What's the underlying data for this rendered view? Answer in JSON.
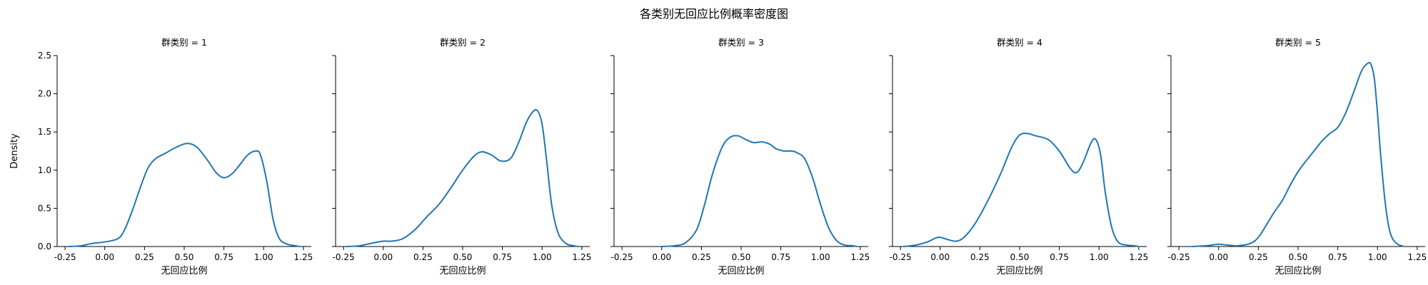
{
  "figure": {
    "title": "各类别无回应比例概率密度图"
  },
  "chart_data": {
    "type": "line",
    "subtype": "kde",
    "shared_y": true,
    "xlabel": "无回应比例",
    "ylabel": "Density",
    "xlim": [
      -0.3,
      1.3
    ],
    "ylim": [
      0,
      2.5
    ],
    "xticks": [
      "-0.25",
      "0.00",
      "0.25",
      "0.50",
      "0.75",
      "1.00",
      "1.25"
    ],
    "xtick_values": [
      -0.25,
      0,
      0.25,
      0.5,
      0.75,
      1.0,
      1.25
    ],
    "yticks": [
      "0.0",
      "0.5",
      "1.0",
      "1.5",
      "2.0",
      "2.5"
    ],
    "ytick_values": [
      0,
      0.5,
      1.0,
      1.5,
      2.0,
      2.5
    ],
    "line_color": "#1f77b4",
    "grid": false,
    "panels": [
      {
        "title": "群类别 = 1",
        "series": [
          {
            "x": [
              -0.23,
              -0.15,
              -0.08,
              0.0,
              0.08,
              0.12,
              0.17,
              0.22,
              0.27,
              0.32,
              0.38,
              0.45,
              0.52,
              0.58,
              0.65,
              0.7,
              0.75,
              0.8,
              0.85,
              0.9,
              0.95,
              0.98,
              1.02,
              1.06,
              1.1,
              1.15,
              1.2,
              1.23
            ],
            "y": [
              0.0,
              0.01,
              0.04,
              0.06,
              0.1,
              0.2,
              0.45,
              0.75,
              1.02,
              1.15,
              1.22,
              1.3,
              1.35,
              1.3,
              1.12,
              0.97,
              0.9,
              0.95,
              1.07,
              1.2,
              1.25,
              1.2,
              0.85,
              0.35,
              0.1,
              0.03,
              0.01,
              0.0
            ]
          }
        ]
      },
      {
        "title": "群类别 = 2",
        "series": [
          {
            "x": [
              -0.23,
              -0.15,
              -0.08,
              0.0,
              0.05,
              0.12,
              0.2,
              0.27,
              0.35,
              0.42,
              0.5,
              0.57,
              0.62,
              0.68,
              0.74,
              0.8,
              0.85,
              0.9,
              0.94,
              0.97,
              1.0,
              1.03,
              1.06,
              1.1,
              1.15,
              1.2,
              1.23
            ],
            "y": [
              0.0,
              0.01,
              0.04,
              0.07,
              0.07,
              0.1,
              0.22,
              0.38,
              0.55,
              0.75,
              1.0,
              1.18,
              1.24,
              1.2,
              1.12,
              1.15,
              1.35,
              1.62,
              1.76,
              1.78,
              1.6,
              1.1,
              0.55,
              0.18,
              0.04,
              0.01,
              0.0
            ]
          }
        ]
      },
      {
        "title": "群类别 = 3",
        "series": [
          {
            "x": [
              0.0,
              0.08,
              0.15,
              0.22,
              0.27,
              0.32,
              0.38,
              0.43,
              0.48,
              0.53,
              0.58,
              0.63,
              0.68,
              0.72,
              0.77,
              0.82,
              0.86,
              0.9,
              0.95,
              1.0,
              1.05,
              1.1,
              1.15,
              1.2,
              1.23
            ],
            "y": [
              0.0,
              0.01,
              0.05,
              0.22,
              0.55,
              0.95,
              1.3,
              1.43,
              1.45,
              1.4,
              1.36,
              1.37,
              1.34,
              1.28,
              1.25,
              1.25,
              1.22,
              1.15,
              0.9,
              0.55,
              0.25,
              0.08,
              0.02,
              0.01,
              0.0
            ]
          }
        ]
      },
      {
        "title": "群类别 = 4",
        "series": [
          {
            "x": [
              -0.23,
              -0.15,
              -0.08,
              -0.03,
              0.0,
              0.05,
              0.1,
              0.15,
              0.22,
              0.3,
              0.38,
              0.45,
              0.5,
              0.55,
              0.6,
              0.68,
              0.75,
              0.82,
              0.86,
              0.9,
              0.95,
              0.98,
              1.01,
              1.04,
              1.08,
              1.12,
              1.17,
              1.22,
              1.25
            ],
            "y": [
              0.0,
              0.02,
              0.06,
              0.11,
              0.12,
              0.09,
              0.07,
              0.12,
              0.3,
              0.6,
              0.95,
              1.3,
              1.46,
              1.48,
              1.45,
              1.4,
              1.25,
              1.02,
              0.97,
              1.1,
              1.36,
              1.4,
              1.2,
              0.7,
              0.25,
              0.06,
              0.02,
              0.01,
              0.0
            ]
          }
        ]
      },
      {
        "title": "群类别 = 5",
        "series": [
          {
            "x": [
              -0.17,
              -0.08,
              0.0,
              0.05,
              0.12,
              0.2,
              0.25,
              0.3,
              0.35,
              0.4,
              0.45,
              0.5,
              0.55,
              0.6,
              0.65,
              0.7,
              0.75,
              0.8,
              0.85,
              0.9,
              0.94,
              0.96,
              0.98,
              1.0,
              1.02,
              1.05,
              1.08,
              1.12,
              1.17
            ],
            "y": [
              0.0,
              0.01,
              0.03,
              0.02,
              0.01,
              0.04,
              0.12,
              0.28,
              0.45,
              0.6,
              0.8,
              0.98,
              1.12,
              1.25,
              1.38,
              1.48,
              1.56,
              1.75,
              2.02,
              2.3,
              2.4,
              2.38,
              2.2,
              1.75,
              1.2,
              0.55,
              0.18,
              0.04,
              0.0
            ]
          }
        ]
      }
    ]
  }
}
